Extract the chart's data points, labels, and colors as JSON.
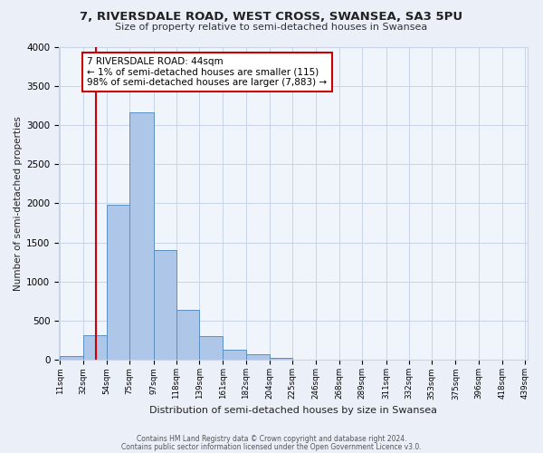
{
  "title": "7, RIVERSDALE ROAD, WEST CROSS, SWANSEA, SA3 5PU",
  "subtitle": "Size of property relative to semi-detached houses in Swansea",
  "xlabel": "Distribution of semi-detached houses by size in Swansea",
  "ylabel": "Number of semi-detached properties",
  "bin_labels": [
    "11sqm",
    "32sqm",
    "54sqm",
    "75sqm",
    "97sqm",
    "118sqm",
    "139sqm",
    "161sqm",
    "182sqm",
    "204sqm",
    "225sqm",
    "246sqm",
    "268sqm",
    "289sqm",
    "311sqm",
    "332sqm",
    "353sqm",
    "375sqm",
    "396sqm",
    "418sqm",
    "439sqm"
  ],
  "bin_edges": [
    11,
    32,
    54,
    75,
    97,
    118,
    139,
    161,
    182,
    204,
    225,
    246,
    268,
    289,
    311,
    332,
    353,
    375,
    396,
    418,
    439
  ],
  "bar_heights": [
    50,
    320,
    1980,
    3160,
    1400,
    640,
    300,
    130,
    75,
    25,
    10,
    5,
    2,
    2,
    1,
    1,
    0,
    0,
    0,
    0
  ],
  "bar_color": "#aec6e8",
  "bar_edge_color": "#5a8fc2",
  "property_line_x": 44,
  "annotation_title": "7 RIVERSDALE ROAD: 44sqm",
  "annotation_line1": "← 1% of semi-detached houses are smaller (115)",
  "annotation_line2": "98% of semi-detached houses are larger (7,883) →",
  "annotation_box_color": "#ffffff",
  "annotation_box_edge": "#cc0000",
  "vline_color": "#cc0000",
  "ylim": [
    0,
    4000
  ],
  "yticks": [
    0,
    500,
    1000,
    1500,
    2000,
    2500,
    3000,
    3500,
    4000
  ],
  "footer1": "Contains HM Land Registry data © Crown copyright and database right 2024.",
  "footer2": "Contains public sector information licensed under the Open Government Licence v3.0.",
  "bg_color": "#eaeff8",
  "plot_bg_color": "#f0f4fb",
  "grid_color": "#c8d4e8"
}
